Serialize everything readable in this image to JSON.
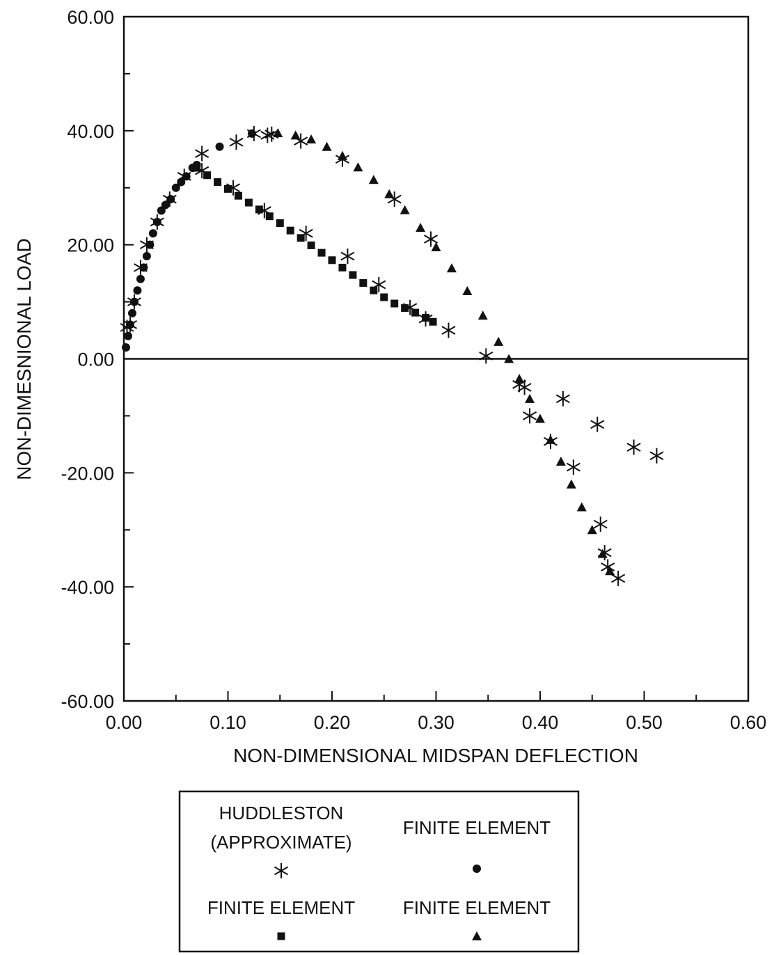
{
  "chart_data": {
    "type": "scatter",
    "title": "",
    "xlabel": "NON-DIMENSIONAL MIDSPAN DEFLECTION",
    "ylabel": "NON-DIMESNIONAL LOAD",
    "xlim": [
      0.0,
      0.6
    ],
    "ylim": [
      -60.0,
      60.0
    ],
    "x_ticks": [
      "0.00",
      "0.10",
      "0.20",
      "0.30",
      "0.40",
      "0.50",
      "0.60"
    ],
    "y_ticks": [
      "-60.00",
      "-40.00",
      "-20.00",
      "0.00",
      "20.00",
      "40.00",
      "60.00"
    ],
    "grid": false,
    "zero_line": true,
    "legend_position": "bottom-center",
    "series": [
      {
        "name": "HUDDLESTON (APPROXIMATE)",
        "marker": "asterisk",
        "x": [
          0.003,
          0.006,
          0.01,
          0.016,
          0.022,
          0.032,
          0.044,
          0.058,
          0.075,
          0.108,
          0.125,
          0.138,
          0.142,
          0.17,
          0.21,
          0.26,
          0.295,
          0.312,
          0.348,
          0.38,
          0.385,
          0.39,
          0.41,
          0.422,
          0.432,
          0.455,
          0.458,
          0.462,
          0.465,
          0.475,
          0.49,
          0.512,
          0.075,
          0.105,
          0.135,
          0.175,
          0.215,
          0.245,
          0.275,
          0.29
        ],
        "y": [
          5.5,
          6.0,
          10.0,
          16.0,
          20.0,
          24.0,
          28.0,
          32.0,
          36.0,
          38.0,
          39.5,
          39.2,
          39.4,
          38.2,
          35.0,
          28.0,
          21.0,
          5.0,
          0.5,
          -4.5,
          -5.0,
          -10.0,
          -14.5,
          -7.0,
          -19.0,
          -11.5,
          -29.0,
          -34.0,
          -36.5,
          -38.5,
          -15.5,
          -17.0,
          33.0,
          30.0,
          26.0,
          22.0,
          18.0,
          13.0,
          9.0,
          7.0
        ]
      },
      {
        "name": "FINITE ELEMENT",
        "marker": "circle",
        "x": [
          0.002,
          0.004,
          0.006,
          0.008,
          0.01,
          0.013,
          0.016,
          0.019,
          0.022,
          0.025,
          0.028,
          0.032,
          0.036,
          0.04,
          0.045,
          0.05,
          0.055,
          0.06,
          0.066,
          0.07,
          0.092,
          0.123
        ],
        "y": [
          2.0,
          4.0,
          6.0,
          8.0,
          10.0,
          12.0,
          14.0,
          16.0,
          18.0,
          20.0,
          22.0,
          24.0,
          26.0,
          27.0,
          28.0,
          30.0,
          31.0,
          32.0,
          33.5,
          34.0,
          37.2,
          39.5
        ]
      },
      {
        "name": "FINITE ELEMENT",
        "marker": "square",
        "x": [
          0.07,
          0.08,
          0.09,
          0.1,
          0.11,
          0.12,
          0.13,
          0.14,
          0.15,
          0.16,
          0.17,
          0.18,
          0.19,
          0.2,
          0.21,
          0.22,
          0.23,
          0.24,
          0.25,
          0.26,
          0.27,
          0.28,
          0.29,
          0.297
        ],
        "y": [
          33.5,
          32.2,
          31.0,
          29.8,
          28.6,
          27.4,
          26.2,
          25.0,
          23.8,
          22.5,
          21.2,
          19.9,
          18.6,
          17.3,
          16.0,
          14.7,
          13.3,
          12.0,
          10.8,
          9.7,
          8.9,
          8.1,
          7.2,
          6.5
        ]
      },
      {
        "name": "FINITE ELEMENT",
        "marker": "triangle",
        "x": [
          0.148,
          0.165,
          0.18,
          0.195,
          0.21,
          0.225,
          0.24,
          0.255,
          0.27,
          0.285,
          0.3,
          0.315,
          0.33,
          0.345,
          0.36,
          0.37,
          0.38,
          0.39,
          0.4,
          0.41,
          0.42,
          0.43,
          0.44,
          0.45,
          0.46,
          0.467
        ],
        "y": [
          39.6,
          39.2,
          38.5,
          37.2,
          35.6,
          33.6,
          31.4,
          28.9,
          26.1,
          23.0,
          19.6,
          15.9,
          11.9,
          7.6,
          3.0,
          0.0,
          -3.5,
          -7.0,
          -10.5,
          -14.2,
          -18.0,
          -22.0,
          -26.0,
          -30.0,
          -34.2,
          -37.2
        ]
      }
    ]
  },
  "legend": {
    "entries": [
      {
        "label_lines": [
          "HUDDLESTON",
          "(APPROXIMATE)"
        ],
        "marker": "asterisk"
      },
      {
        "label_lines": [
          "FINITE ELEMENT"
        ],
        "marker": "circle"
      },
      {
        "label_lines": [
          "FINITE ELEMENT"
        ],
        "marker": "square"
      },
      {
        "label_lines": [
          "FINITE ELEMENT"
        ],
        "marker": "triangle"
      }
    ]
  }
}
